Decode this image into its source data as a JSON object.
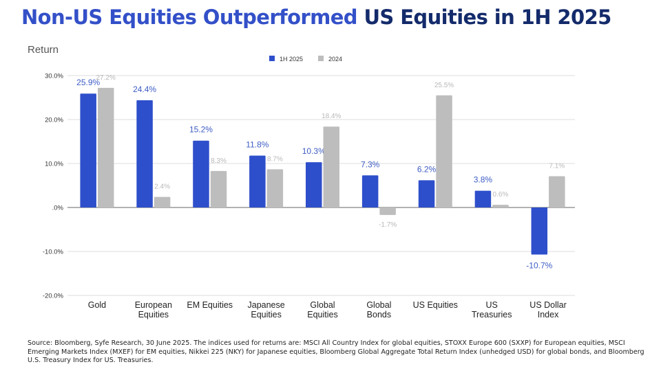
{
  "title": {
    "highlight": "Non-US Equities Outperformed",
    "rest": " US Equities in 1H 2025"
  },
  "colors": {
    "series1": "#2e4fcb",
    "series2": "#bdbdbd",
    "label1": "#3d5cc4",
    "label2": "#b8b8b8",
    "title_highlight": "#3350c8",
    "title_rest": "#142b6b"
  },
  "chart_data": {
    "type": "bar",
    "title": "Non-US Equities Outperformed US Equities in 1H 2025",
    "xlabel": "",
    "ylabel": "Return",
    "ylim": [
      -20,
      30
    ],
    "yticks": [
      30,
      20,
      10,
      0,
      -10,
      -20
    ],
    "ytick_labels": [
      "30.0%",
      "20.0%",
      "10.0%",
      ".0%",
      "-10.0%",
      "-20.0%"
    ],
    "grid": true,
    "legend_position": "top-center",
    "categories": [
      [
        "Gold"
      ],
      [
        "European",
        "Equities"
      ],
      [
        "EM Equities"
      ],
      [
        "Japanese",
        "Equities"
      ],
      [
        "Global",
        "Equities"
      ],
      [
        "Global",
        "Bonds"
      ],
      [
        "US Equities"
      ],
      [
        "US",
        "Treasuries"
      ],
      [
        "US Dollar",
        "Index"
      ]
    ],
    "series": [
      {
        "name": "1H 2025",
        "values": [
          25.9,
          24.4,
          15.2,
          11.8,
          10.3,
          7.3,
          6.2,
          3.8,
          -10.7
        ]
      },
      {
        "name": "2024",
        "values": [
          27.2,
          2.4,
          8.3,
          8.7,
          18.4,
          -1.7,
          25.5,
          0.6,
          7.1
        ]
      }
    ]
  },
  "source": "Source: Bloomberg, Syfe Research, 30 June  2025. The indices used for returns are: MSCI All Country Index for global equities, STOXX Europe 600 (SXXP) for European equities, MSCI Emerging Markets Index (MXEF) for EM equities, Nikkei 225 (NKY) for Japanese equities, Bloomberg Global Aggregate Total Return Index (unhedged USD) for global bonds, and Bloomberg U.S. Treasury Index for US. Treasuries."
}
